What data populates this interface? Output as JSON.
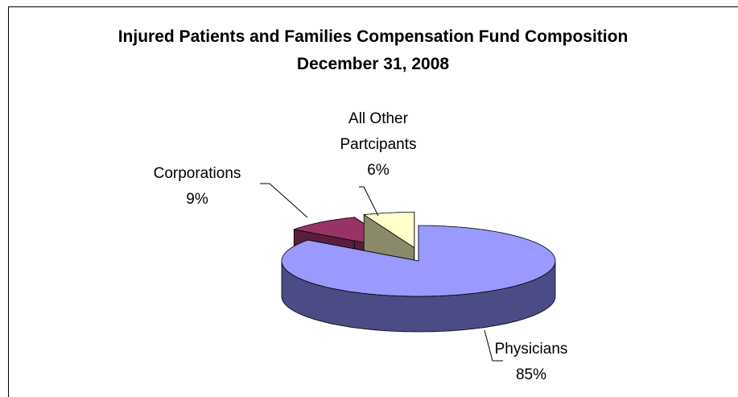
{
  "chart_data": {
    "type": "pie",
    "title": "Injured Patients and Families Compensation Fund Composition",
    "subtitle": "December 31, 2008",
    "categories": [
      "Physicians",
      "Corporations",
      "All Other Partcipants"
    ],
    "values": [
      85,
      9,
      6
    ],
    "value_labels": [
      "85%",
      "9%",
      "6%"
    ],
    "colors": [
      "#9999ff",
      "#993366",
      "#ffffcc"
    ],
    "side_colors": [
      "#4b4b86",
      "#5a1e3c",
      "#8a8a6a"
    ]
  }
}
